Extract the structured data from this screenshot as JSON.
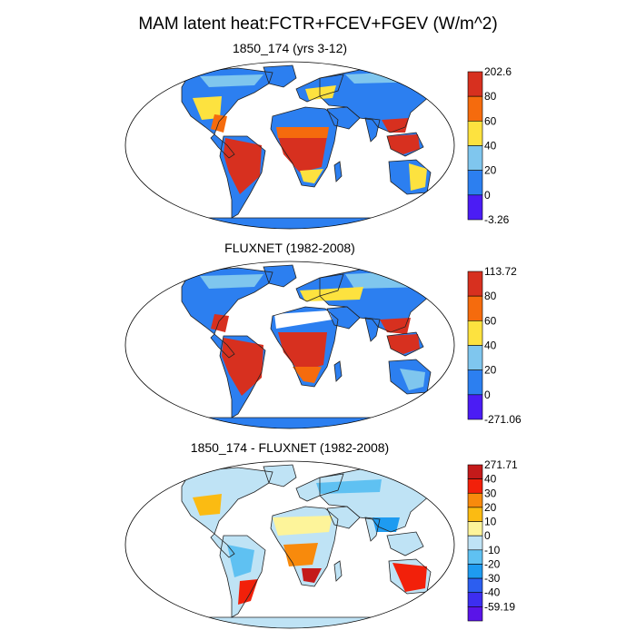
{
  "title": "MAM latent heat:FCTR+FCEV+FGEV (W/m^2)",
  "panels": [
    {
      "title": "1850_174 (yrs 3-12)",
      "colorbar": {
        "labels": [
          "202.6",
          "80",
          "60",
          "40",
          "20",
          "0",
          "-3.26"
        ],
        "colors": [
          "#d7301f",
          "#f56b0d",
          "#fde23f",
          "#7fc6ee",
          "#2c7ff0",
          "#4b1cf4"
        ]
      }
    },
    {
      "title": "FLUXNET (1982-2008)",
      "colorbar": {
        "labels": [
          "113.72",
          "80",
          "60",
          "40",
          "20",
          "0",
          "-271.06"
        ],
        "colors": [
          "#d7301f",
          "#f56b0d",
          "#fde23f",
          "#7fc6ee",
          "#2c7ff0",
          "#4b1cf4"
        ]
      }
    },
    {
      "title": "1850_174 - FLUXNET (1982-2008)",
      "colorbar": {
        "labels": [
          "271.71",
          "40",
          "30",
          "20",
          "10",
          "0",
          "-10",
          "-20",
          "-30",
          "-40",
          "-59.19"
        ],
        "colors": [
          "#c41a1a",
          "#f2200a",
          "#f88a0c",
          "#fbbb12",
          "#fdf49a",
          "#bfe3f5",
          "#5fc1f2",
          "#1e9bf0",
          "#2c5ef0",
          "#3d2ef0",
          "#5a14e8"
        ]
      }
    }
  ]
}
